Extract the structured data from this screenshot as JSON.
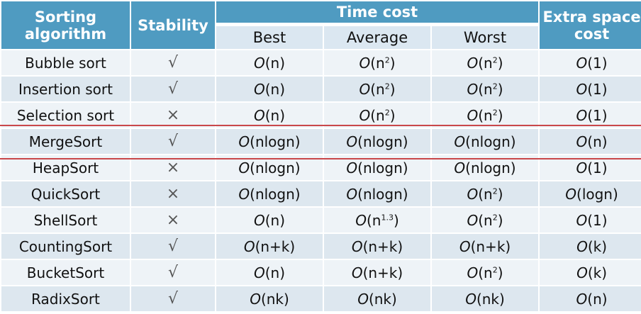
{
  "header": {
    "algorithm": "Sorting algorithm",
    "algorithm_line1": "Sorting",
    "algorithm_line2": "algorithm",
    "stability": "Stability",
    "time_cost": "Time cost",
    "best": "Best",
    "average": "Average",
    "worst": "Worst",
    "extra_space": "Extra space cost",
    "extra_space_line1": "Extra space",
    "extra_space_line2": "cost"
  },
  "rows": [
    {
      "name": "Bubble sort",
      "stable": "√",
      "best": {
        "f": "O",
        "a": "(n)",
        "s": ""
      },
      "average": {
        "f": "O",
        "a": "(n",
        "s": "2",
        "b": ")"
      },
      "worst": {
        "f": "O",
        "a": "(n",
        "s": "2",
        "b": ")"
      },
      "space": {
        "f": "O",
        "a": "(1)"
      }
    },
    {
      "name": "Insertion sort",
      "stable": "√",
      "best": {
        "f": "O",
        "a": "(n)",
        "s": ""
      },
      "average": {
        "f": "O",
        "a": "(n",
        "s": "2",
        "b": ")"
      },
      "worst": {
        "f": "O",
        "a": "(n",
        "s": "2",
        "b": ")"
      },
      "space": {
        "f": "O",
        "a": "(1)"
      }
    },
    {
      "name": "Selection sort",
      "stable": "×",
      "best": {
        "f": "O",
        "a": "(n)",
        "s": ""
      },
      "average": {
        "f": "O",
        "a": "(n",
        "s": "2",
        "b": ")"
      },
      "worst": {
        "f": "O",
        "a": "(n",
        "s": "2",
        "b": ")"
      },
      "space": {
        "f": "O",
        "a": "(1)"
      }
    },
    {
      "name": "MergeSort",
      "stable": "√",
      "best": {
        "f": "O",
        "a": "(nlogn)",
        "s": ""
      },
      "average": {
        "f": "O",
        "a": "(nlogn)",
        "s": ""
      },
      "worst": {
        "f": "O",
        "a": "(nlogn)",
        "s": ""
      },
      "space": {
        "f": "O",
        "a": "(n)"
      }
    },
    {
      "name": "HeapSort",
      "stable": "×",
      "best": {
        "f": "O",
        "a": "(nlogn)",
        "s": ""
      },
      "average": {
        "f": "O",
        "a": "(nlogn)",
        "s": ""
      },
      "worst": {
        "f": "O",
        "a": "(nlogn)",
        "s": ""
      },
      "space": {
        "f": "O",
        "a": "(1)"
      }
    },
    {
      "name": "QuickSort",
      "stable": "×",
      "best": {
        "f": "O",
        "a": "(nlogn)",
        "s": ""
      },
      "average": {
        "f": "O",
        "a": "(nlogn)",
        "s": ""
      },
      "worst": {
        "f": "O",
        "a": "(n",
        "s": "2",
        "b": ")"
      },
      "space": {
        "f": "O",
        "a": "(logn)"
      }
    },
    {
      "name": "ShellSort",
      "stable": "×",
      "best": {
        "f": "O",
        "a": "(n)",
        "s": ""
      },
      "average": {
        "f": "O",
        "a": "(n",
        "s": "1.3",
        "b": ")"
      },
      "worst": {
        "f": "O",
        "a": "(n",
        "s": "2",
        "b": ")"
      },
      "space": {
        "f": "O",
        "a": "(1)"
      }
    },
    {
      "name": "CountingSort",
      "stable": "√",
      "best": {
        "f": "O",
        "a": "(n+k)",
        "s": ""
      },
      "average": {
        "f": "O",
        "a": "(n+k)",
        "s": ""
      },
      "worst": {
        "f": "O",
        "a": "(n+k)",
        "s": ""
      },
      "space": {
        "f": "O",
        "a": "(k)"
      }
    },
    {
      "name": "BucketSort",
      "stable": "√",
      "best": {
        "f": "O",
        "a": "(n)",
        "s": ""
      },
      "average": {
        "f": "O",
        "a": "(n+k)",
        "s": ""
      },
      "worst": {
        "f": "O",
        "a": "(n",
        "s": "2",
        "b": ")"
      },
      "space": {
        "f": "O",
        "a": "(k)"
      }
    },
    {
      "name": "RadixSort",
      "stable": "√",
      "best": {
        "f": "O",
        "a": "(nk)",
        "s": ""
      },
      "average": {
        "f": "O",
        "a": "(nk)",
        "s": ""
      },
      "worst": {
        "f": "O",
        "a": "(nk)",
        "s": ""
      },
      "space": {
        "f": "O",
        "a": "(n)"
      }
    }
  ],
  "colors": {
    "header": "#4f9bc1",
    "subheader": "#dbe7f1",
    "row_light": "#eef3f7",
    "row_dark": "#dde7ef",
    "highlight_line": "#c9474a"
  }
}
